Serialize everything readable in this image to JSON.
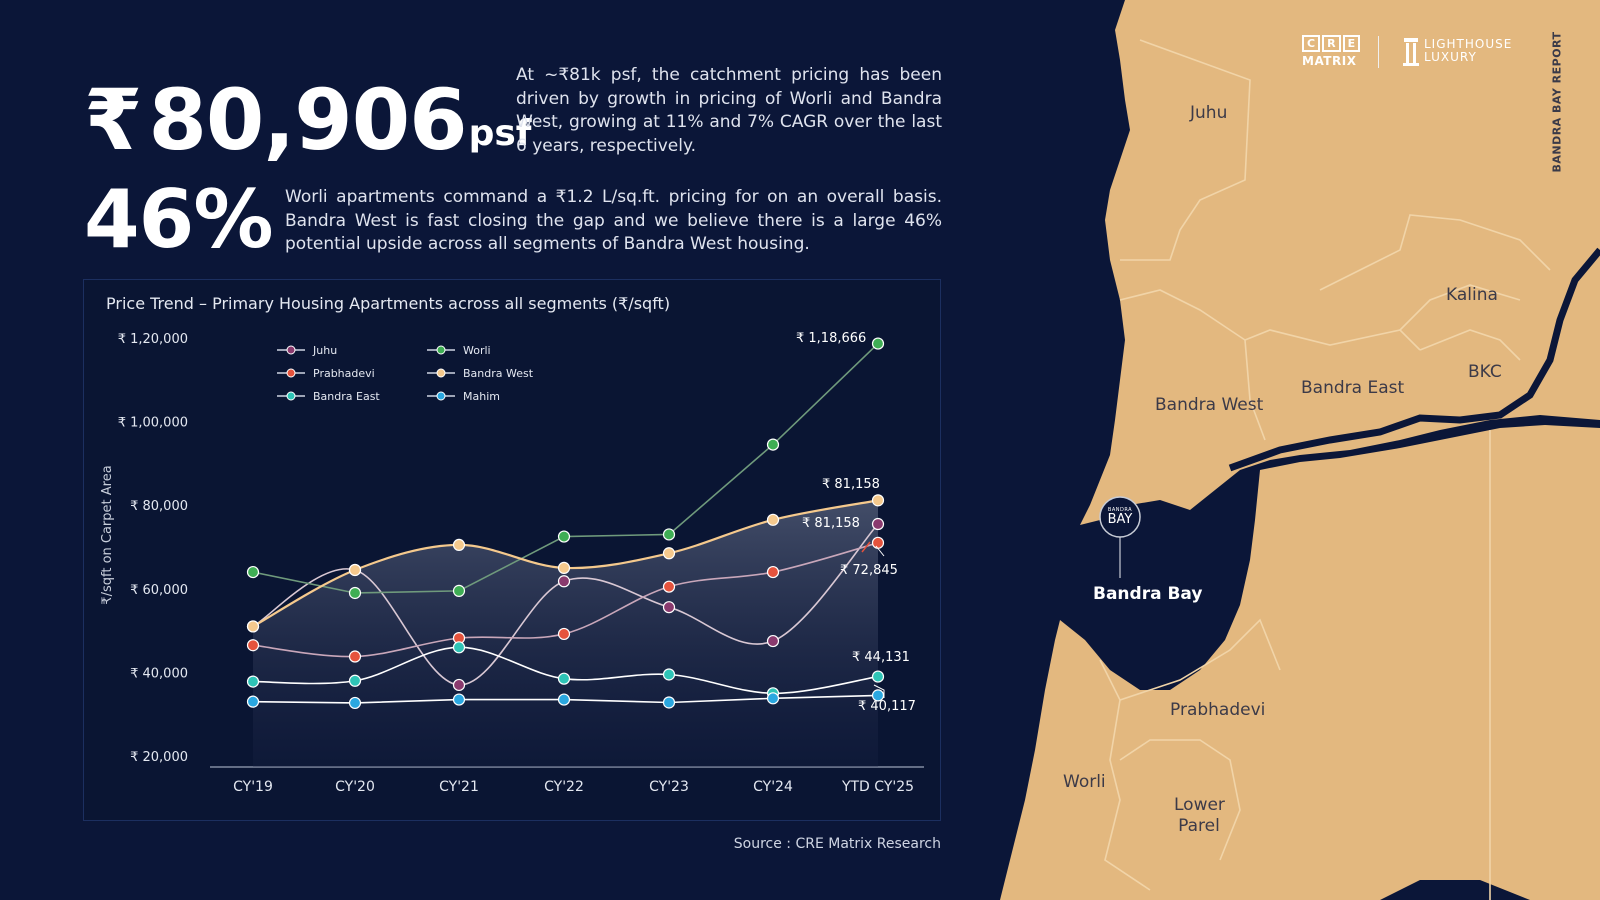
{
  "headline": {
    "currency_symbol": "₹",
    "price": "80,906",
    "unit": "psf",
    "description": "At ~₹81k psf, the catchment pricing has been driven by growth in pricing of Worli and Bandra West, growing at 11% and 7% CAGR over the last 6 years, respectively."
  },
  "stat": {
    "value": "46%",
    "description": "Worli apartments command a ₹1.2 L/sq.ft. pricing for on an overall basis. Bandra West is fast closing the gap and we believe there is a large 46% potential upside across all segments of Bandra West housing."
  },
  "source": "Source : CRE Matrix Research",
  "brand": {
    "cre_letters": [
      "C",
      "R",
      "E"
    ],
    "cre_sub": "MATRIX",
    "lighthouse_line1": "LIGHTHOUSE",
    "lighthouse_line2": "LUXURY",
    "side_text": "BANDRA BAY REPORT"
  },
  "map": {
    "labels": {
      "juhu": "Juhu",
      "kalina": "Kalina",
      "bkc": "BKC",
      "bandra_west": "Bandra West",
      "bandra_east": "Bandra East",
      "bandra_bay": "Bandra Bay",
      "prabhadevi": "Prabhadevi",
      "worli": "Worli",
      "lower_parel": "Lower Parel"
    },
    "marker_top": "BANDRA",
    "marker_main": "BAY",
    "land_color": "#e3b87f",
    "sea_color": "#0b1638"
  },
  "chart_data": {
    "type": "line",
    "title": "Price Trend – Primary Housing Apartments across all segments (₹/sqft)",
    "ylabel": "₹/sqft on Carpet Area",
    "xlabel": "",
    "categories": [
      "CY'19",
      "CY'20",
      "CY'21",
      "CY'22",
      "CY'23",
      "CY'24",
      "YTD CY'25"
    ],
    "ylim": [
      20000,
      120000
    ],
    "yticks": [
      120000,
      100000,
      80000,
      60000,
      40000,
      20000
    ],
    "ytick_labels": [
      "₹ 1,20,000",
      "₹ 1,00,000",
      "₹ 80,000",
      "₹ 60,000",
      "₹ 40,000",
      "₹ 20,000"
    ],
    "grid": false,
    "legend_position": "top-left",
    "series": [
      {
        "name": "Juhu",
        "color": "#e6c3d6",
        "values": [
          51000,
          64500,
          37000,
          61800,
          55600,
          47500,
          75500
        ]
      },
      {
        "name": "Prabhadevi",
        "color": "#e5533d",
        "values": [
          46500,
          43800,
          48200,
          49200,
          60500,
          64000,
          71000
        ]
      },
      {
        "name": "Bandra East",
        "color": "#2ec4b6",
        "values": [
          37800,
          38000,
          46000,
          38500,
          39500,
          35000,
          39000
        ]
      },
      {
        "name": "Worli",
        "color": "#3fae54",
        "values": [
          64000,
          59000,
          59500,
          72500,
          73000,
          94500,
          118666
        ]
      },
      {
        "name": "Bandra West",
        "color": "#f5c98d",
        "values": [
          51000,
          64500,
          70500,
          65000,
          68500,
          76500,
          81158
        ]
      },
      {
        "name": "Mahim",
        "color": "#2aa7e0",
        "values": [
          33000,
          32700,
          33500,
          33500,
          32800,
          33800,
          34500
        ]
      }
    ],
    "annotations": [
      "₹ 1,18,666",
      "₹ 81,158",
      "₹ 81,158",
      "₹ 72,845",
      "₹ 44,131",
      "₹ 40,117"
    ]
  }
}
